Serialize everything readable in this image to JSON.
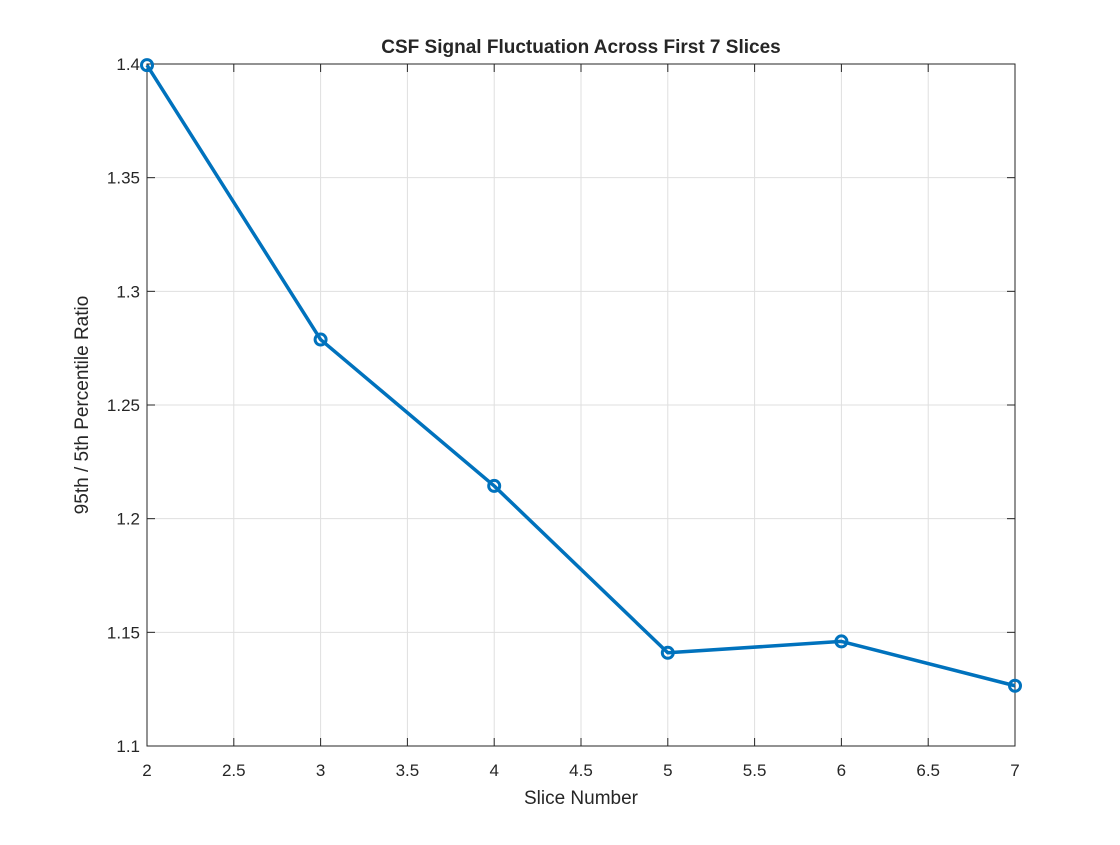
{
  "chart_data": {
    "type": "line",
    "title": "CSF Signal Fluctuation Across First 7 Slices",
    "xlabel": "Slice Number",
    "ylabel": "95th / 5th Percentile Ratio",
    "xlim": [
      2,
      7
    ],
    "ylim": [
      1.1,
      1.4
    ],
    "xticks": [
      "2",
      "2.5",
      "3",
      "3.5",
      "4",
      "4.5",
      "5",
      "5.5",
      "6",
      "6.5",
      "7"
    ],
    "yticks": [
      "1.1",
      "1.15",
      "1.2",
      "1.25",
      "1.3",
      "1.35",
      "1.4"
    ],
    "grid": true,
    "series": [
      {
        "color": "#0072bd",
        "marker": "circle",
        "x": [
          2,
          3,
          4,
          5,
          6,
          7
        ],
        "y": [
          1.3995,
          1.2788,
          1.2144,
          1.141,
          1.146,
          1.1265
        ]
      }
    ]
  }
}
